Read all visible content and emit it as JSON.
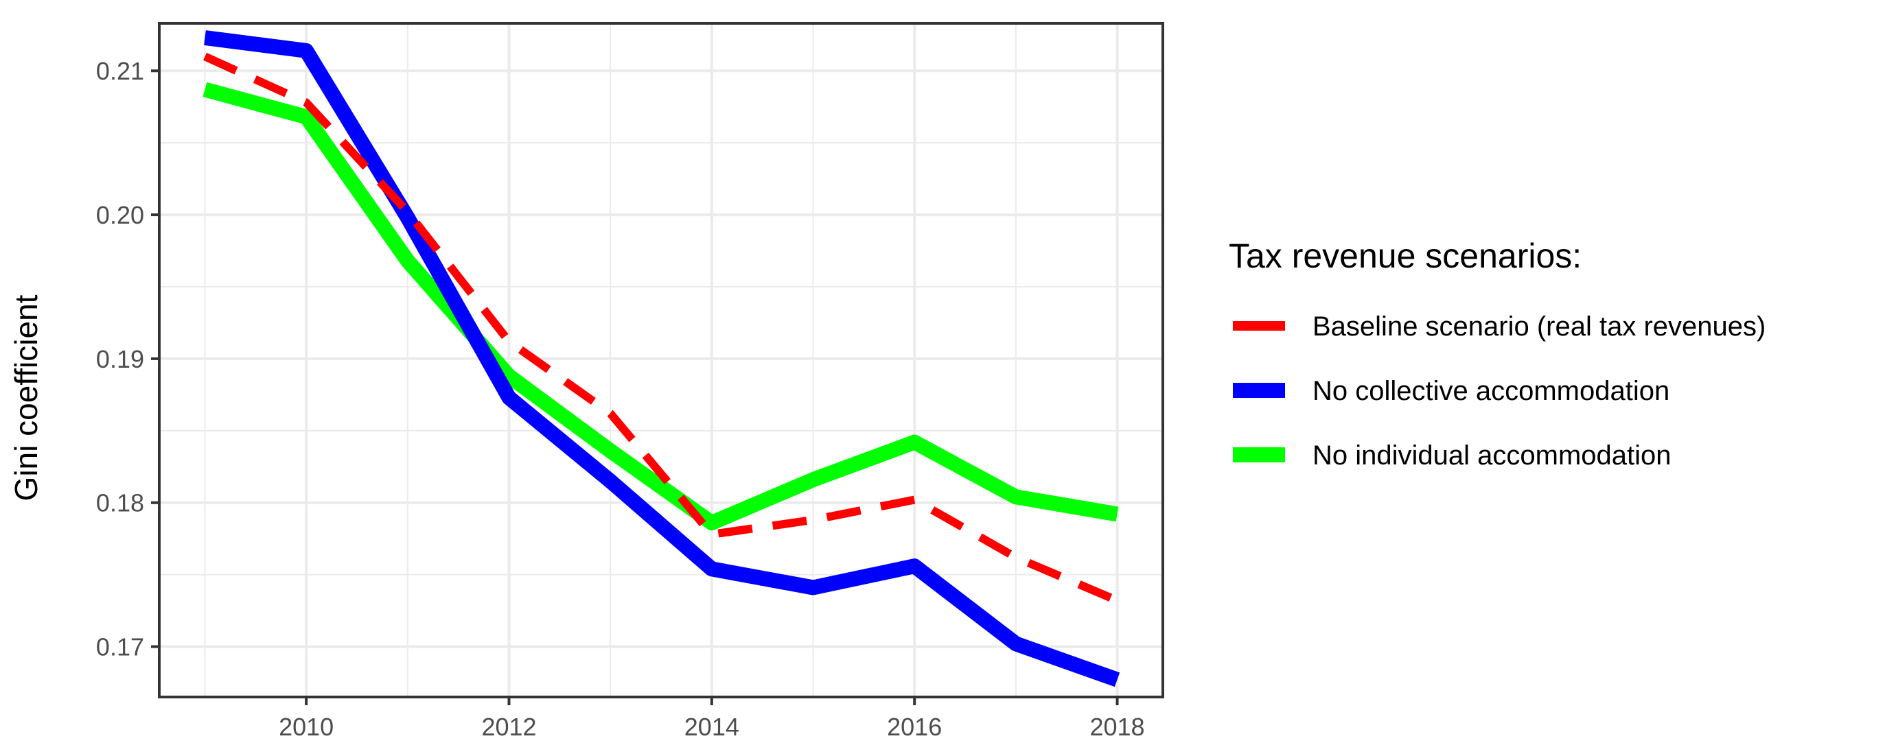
{
  "chart_data": {
    "type": "line",
    "title": "",
    "xlabel": "",
    "ylabel": "Gini coefficient",
    "x": [
      2009,
      2010,
      2011,
      2012,
      2013,
      2014,
      2015,
      2016,
      2017,
      2018
    ],
    "xlim": [
      2008.55,
      2018.45
    ],
    "ylim": [
      0.1665,
      0.2133
    ],
    "x_ticks": [
      2010,
      2012,
      2014,
      2016,
      2018
    ],
    "y_ticks": [
      0.17,
      0.18,
      0.19,
      0.2,
      0.21
    ],
    "x_tick_labels": [
      "2010",
      "2012",
      "2014",
      "2016",
      "2018"
    ],
    "y_tick_labels": [
      "0.17",
      "0.18",
      "0.19",
      "0.20",
      "0.21"
    ],
    "grid": true,
    "legend": {
      "title": "Tax revenue scenarios:",
      "position": "right"
    },
    "series": [
      {
        "name": "Baseline scenario (real tax revenues)",
        "color": "#ff0000",
        "dashed": true,
        "values": [
          0.211,
          0.2078,
          0.2002,
          0.1912,
          0.1862,
          0.1778,
          0.1788,
          0.1802,
          0.1762,
          0.1732
        ]
      },
      {
        "name": "No collective accommodation",
        "color": "#0000ff",
        "dashed": false,
        "values": [
          0.2123,
          0.2114,
          0.1998,
          0.1873,
          0.1815,
          0.1754,
          0.1741,
          0.1756,
          0.1702,
          0.1677
        ]
      },
      {
        "name": "No individual accommodation",
        "color": "#00ff00",
        "dashed": false,
        "values": [
          0.2087,
          0.2068,
          0.1968,
          0.1888,
          0.1836,
          0.1786,
          0.1816,
          0.1842,
          0.1804,
          0.1792
        ]
      }
    ]
  }
}
